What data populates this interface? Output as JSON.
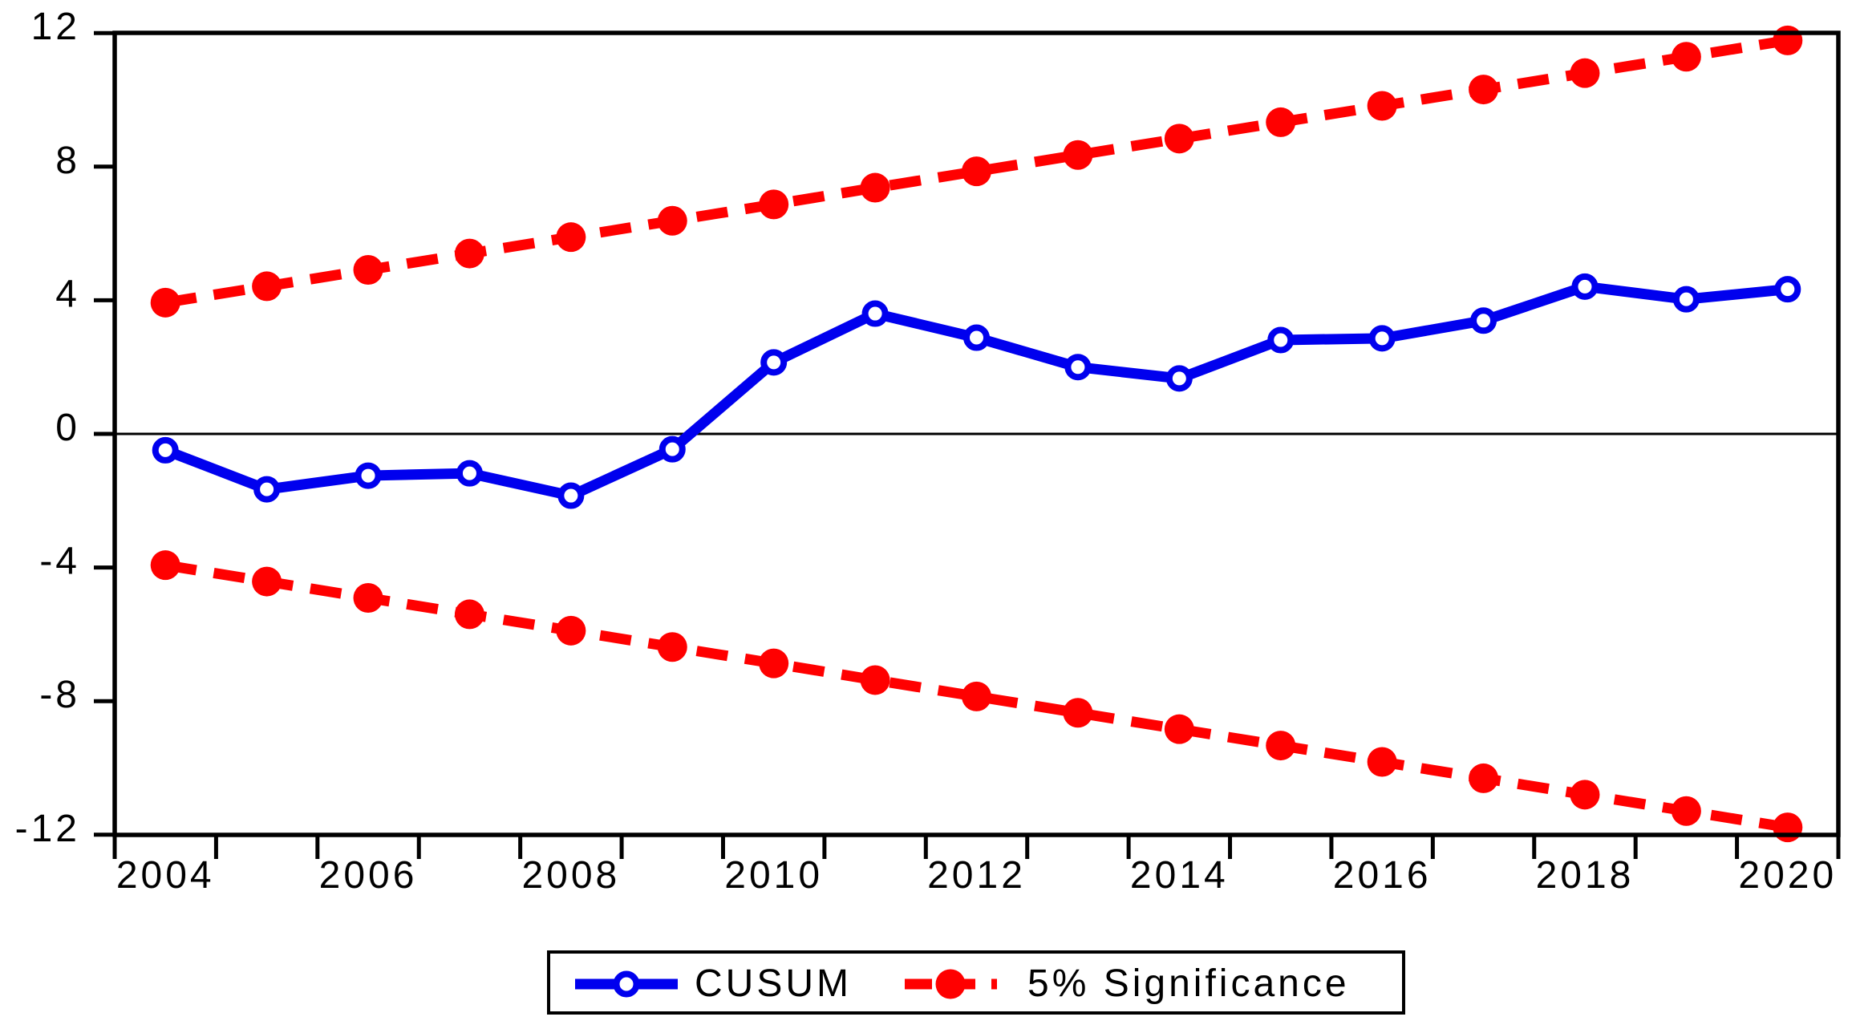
{
  "chart_data": {
    "type": "line",
    "title": "",
    "xlabel": "",
    "ylabel": "",
    "x": [
      2004,
      2005,
      2006,
      2007,
      2008,
      2009,
      2010,
      2011,
      2012,
      2013,
      2014,
      2015,
      2016,
      2017,
      2018,
      2019,
      2020
    ],
    "x_tick_labels": [
      "2004",
      "2006",
      "2008",
      "2010",
      "2012",
      "2014",
      "2016",
      "2018",
      "2020"
    ],
    "y_ticks": [
      12,
      8,
      4,
      0,
      -4,
      -8,
      -12
    ],
    "ylim": [
      -12.1,
      12.1
    ],
    "grid": false,
    "zero_line": 0,
    "legend_position": "bottom-center",
    "series": [
      {
        "name": "CUSUM",
        "color": "#0000EE",
        "line_style": "solid",
        "marker": "open-circle",
        "values": [
          -0.49,
          -1.66,
          -1.25,
          -1.18,
          -1.85,
          -0.46,
          2.14,
          3.6,
          2.88,
          2.0,
          1.66,
          2.81,
          2.86,
          3.39,
          4.41,
          4.03,
          4.33
        ]
      },
      {
        "name": "5% Significance (upper)",
        "color": "#FF0000",
        "line_style": "dashed",
        "marker": "filled-circle",
        "values": [
          3.93,
          4.42,
          4.91,
          5.4,
          5.89,
          6.38,
          6.87,
          7.37,
          7.86,
          8.35,
          8.84,
          9.33,
          9.82,
          10.31,
          10.8,
          11.29,
          11.78
        ]
      },
      {
        "name": "5% Significance (lower)",
        "color": "#FF0000",
        "line_style": "dashed",
        "marker": "filled-circle",
        "values": [
          -3.93,
          -4.42,
          -4.91,
          -5.4,
          -5.89,
          -6.38,
          -6.87,
          -7.37,
          -7.86,
          -8.35,
          -8.84,
          -9.33,
          -9.82,
          -10.31,
          -10.8,
          -11.29,
          -11.78
        ]
      }
    ],
    "legend": [
      {
        "label": "CUSUM",
        "color": "#0000EE",
        "line_style": "solid",
        "marker": "open-circle"
      },
      {
        "label": "5% Significance",
        "color": "#FF0000",
        "line_style": "dashed",
        "marker": "filled-circle"
      }
    ]
  },
  "colors": {
    "cusum_blue": "#0000EE",
    "significance_red": "#FF0000",
    "axis_black": "#000000",
    "background": "#FFFFFF"
  }
}
